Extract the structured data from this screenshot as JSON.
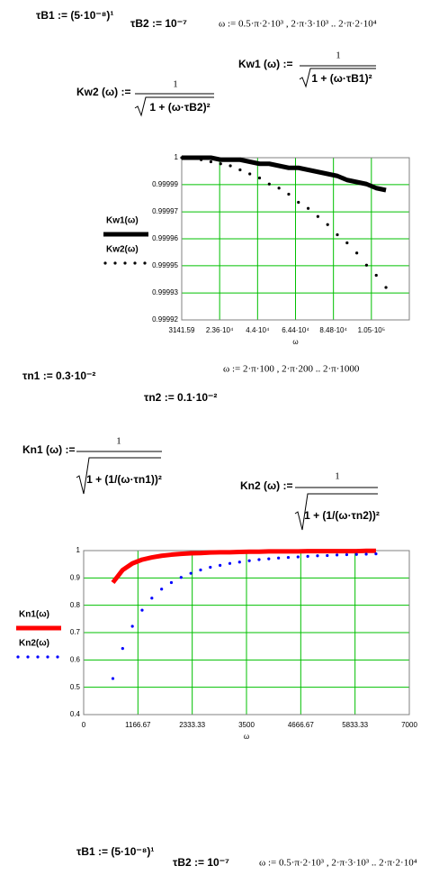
{
  "header": {
    "tauB1": "τB1 := (5·10⁻⁸)¹",
    "tauB2": "τB2 := 10⁻⁷",
    "omega": "ω := 0.5·π·2·10³ , 2·π·3·10³ .. 2·π·2·10⁴"
  },
  "kw": {
    "kw1": {
      "lhs": "Kw1 (ω) :=",
      "numerator": "1",
      "denominator": "1 + (ω·τB1)²"
    },
    "kw2": {
      "lhs": "Kw2 (ω) :=",
      "numerator": "1",
      "denominator": "1 + (ω·τB2)²"
    }
  },
  "params2": {
    "taun1": "τn1 := 0.3·10⁻²",
    "omega": "ω := 2·π·100 , 2·π·200 .. 2·π·1000",
    "taun2": "τn2 := 0.1·10⁻²"
  },
  "kn": {
    "kn1": {
      "lhs": "Kn1 (ω) :=",
      "numerator": "1",
      "denominator": "1 + (1/(ω·τn1))²"
    },
    "kn2": {
      "lhs": "Kn2 (ω) :=",
      "numerator": "1",
      "denominator": "1 + (1/(ω·τn2))²"
    }
  },
  "chart_data": [
    {
      "type": "line",
      "x_label": "ω",
      "grid": true,
      "x": [
        3142,
        8378,
        13614,
        18850,
        24086,
        29322,
        34558,
        39794,
        45030,
        50266,
        55502,
        60738,
        65974,
        71210,
        76446,
        81682,
        86918,
        92154,
        97390,
        102626,
        107862,
        113098
      ],
      "series": [
        {
          "name": "Kw1(ω)",
          "color": "#000000",
          "style": "solid",
          "values": [
            1,
            1,
            1,
            1,
            0.999999,
            0.999999,
            0.999999,
            0.999998,
            0.999997,
            0.999997,
            0.999996,
            0.999995,
            0.999995,
            0.999994,
            0.999993,
            0.999992,
            0.999991,
            0.999989,
            0.999988,
            0.999987,
            0.999985,
            0.999984
          ]
        },
        {
          "name": "Kw2(ω)",
          "color": "#000000",
          "style": "dotted",
          "values": [
            1,
            1,
            0.999999,
            0.999998,
            0.999997,
            0.999996,
            0.999994,
            0.999992,
            0.99999,
            0.999987,
            0.999985,
            0.999982,
            0.999978,
            0.999975,
            0.999971,
            0.999967,
            0.999962,
            0.999958,
            0.999953,
            0.999947,
            0.999942,
            0.999936
          ]
        }
      ],
      "xlim": [
        3141.59,
        125663.7
      ],
      "xticks": [
        3141.59,
        {
          "value": 23562,
          "label": "2.36·10⁴"
        },
        {
          "value": 43982.4,
          "label": "4.4·10⁴"
        },
        {
          "value": 64402.8,
          "label": "6.44·10⁴"
        },
        {
          "value": 84823.2,
          "label": "8.48·10⁴"
        },
        {
          "value": 105243.6,
          "label": "1.05·10⁵"
        }
      ],
      "ylim": [
        0.99992,
        1
      ],
      "yticks": [
        1,
        {
          "value": 0.9999867,
          "label": "0.99999"
        },
        {
          "value": 0.9999733,
          "label": "0.99997"
        },
        0.99996,
        {
          "value": 0.9999467,
          "label": "0.99995"
        },
        {
          "value": 0.9999333,
          "label": "0.99993"
        },
        0.99992
      ]
    },
    {
      "type": "line",
      "x_label": "ω",
      "grid": true,
      "x": [
        628.3,
        837.7,
        1047.2,
        1256.6,
        1466.1,
        1675.5,
        1884.9,
        2094.4,
        2303.8,
        2513.3,
        2722.7,
        2932.1,
        3141.6,
        3351,
        3560.5,
        3769.9,
        3979.4,
        4188.8,
        4398.2,
        4607.7,
        4817.1,
        5026.5,
        5236,
        5445.4,
        5654.9,
        5864.3,
        6073.7,
        6283.2
      ],
      "series": [
        {
          "name": "Kn1(ω)",
          "color": "#ff0000",
          "style": "solid",
          "values": [
            0.883,
            0.929,
            0.953,
            0.967,
            0.975,
            0.981,
            0.985,
            0.988,
            0.99,
            0.991,
            0.993,
            0.994,
            0.994,
            0.995,
            0.996,
            0.996,
            0.997,
            0.997,
            0.997,
            0.997,
            0.998,
            0.998,
            0.998,
            0.998,
            0.998,
            0.998,
            0.999,
            0.999
          ]
        },
        {
          "name": "Kn2(ω)",
          "color": "#0000ff",
          "style": "dotted",
          "values": [
            0.532,
            0.642,
            0.723,
            0.782,
            0.826,
            0.859,
            0.883,
            0.902,
            0.917,
            0.929,
            0.939,
            0.946,
            0.953,
            0.958,
            0.963,
            0.967,
            0.97,
            0.973,
            0.975,
            0.977,
            0.979,
            0.981,
            0.982,
            0.984,
            0.985,
            0.986,
            0.987,
            0.988
          ]
        }
      ],
      "xlim": [
        0,
        7000
      ],
      "xticks": [
        0,
        1166.67,
        2333.33,
        3500,
        4666.67,
        5833.33,
        7000
      ],
      "ylim": [
        0.4,
        1
      ],
      "yticks": [
        0.4,
        0.5,
        0.6,
        0.7,
        0.8,
        0.9,
        1
      ]
    }
  ],
  "footer": {
    "tauB1": "τB1 := (5·10⁻⁸)¹",
    "tauB2": "τB2 := 10⁻⁷",
    "omega": "ω := 0.5·π·2·10³ , 2·π·3·10³ .. 2·π·2·10⁴"
  }
}
